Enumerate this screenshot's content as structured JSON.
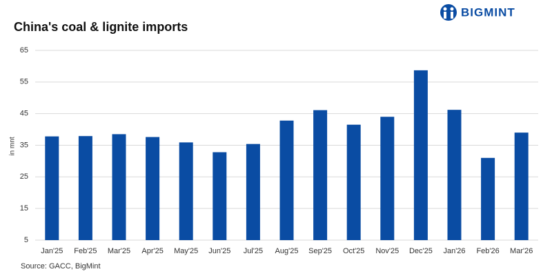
{
  "chart_data": {
    "type": "bar",
    "title": "China's coal & lignite imports",
    "brand": "BIGMINT",
    "y_label": "in mnt",
    "source": "Source: GACC, BigMint",
    "categories": [
      "Jan'25",
      "Feb'25",
      "Mar'25",
      "Apr'25",
      "May'25",
      "Jun'25",
      "Jul'25",
      "Aug'25",
      "Sep'25",
      "Oct'25",
      "Nov'25",
      "Dec'25",
      "Jan'26",
      "Feb'26",
      "Mar'26"
    ],
    "values": [
      37.8,
      37.9,
      38.5,
      37.6,
      35.9,
      32.8,
      35.4,
      42.8,
      46.1,
      41.5,
      44.0,
      58.7,
      46.2,
      31.0,
      39.0
    ],
    "color": "#0a4ca3",
    "ylim": [
      5,
      65
    ],
    "yticks": [
      5,
      15,
      25,
      35,
      45,
      55,
      65
    ],
    "grid": true
  }
}
